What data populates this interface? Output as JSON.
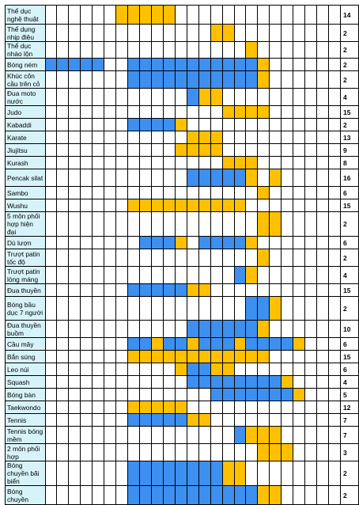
{
  "colors": {
    "name_bg": "#d7f3fa",
    "blue": "#3d8ff0",
    "yellow": "#ffc000"
  },
  "legend_codes": {
    "B": "blue",
    "Y": "yellow",
    ".": "empty"
  },
  "rows": [
    {
      "name": "Thể dục nghệ thuật",
      "count": "14",
      "cells": "......YYYYY.............."
    },
    {
      "name": "Thể dụng nhịp điệu",
      "count": "2",
      "cells": "..............YY........."
    },
    {
      "name": "Thể dục nhào lộn",
      "count": "2",
      "cells": ".................Y......."
    },
    {
      "name": "Bóng ném",
      "count": "2",
      "cells": "BBBBB..BBBBBBBBBBBY......"
    },
    {
      "name": "Khúc côn cầu trên cỏ",
      "count": "2",
      "cells": ".......BBBBBBBBBBBY......"
    },
    {
      "name": "Đua moto nước",
      "count": "4",
      "cells": "............BYY.........."
    },
    {
      "name": "Judo",
      "count": "15",
      "cells": "...............YYYY......"
    },
    {
      "name": "Kabaddi",
      "count": "2",
      "cells": ".......BBBBY............."
    },
    {
      "name": "Karate",
      "count": "13",
      "cells": "............YYY.........."
    },
    {
      "name": "Jiujitsu",
      "count": "9",
      "cells": "...........YYYY.........."
    },
    {
      "name": "Kurash",
      "count": "8",
      "cells": "...............YYY......."
    },
    {
      "name": "Pencak silat",
      "count": "16",
      "cells": "............BBBBBY.Y....."
    },
    {
      "name": "Sambo",
      "count": "6",
      "cells": "..................Y......"
    },
    {
      "name": "Wushu",
      "count": "15",
      "cells": ".......YYYYYYYYYY........"
    },
    {
      "name": "5 môn phối hợp hiện đại",
      "count": "2",
      "cells": "..................YY....."
    },
    {
      "name": "Dù lượn",
      "count": "6",
      "cells": "........BBBY.BBBBY......."
    },
    {
      "name": "Trượt patin tốc độ",
      "count": "2",
      "cells": "..................Y......"
    },
    {
      "name": "Trượt patin lòng máng",
      "count": "4",
      "cells": "................BY......."
    },
    {
      "name": "Đua thuyền",
      "count": "15",
      "cells": ".......BBBBBYY..........."
    },
    {
      "name": "Bóng bầu dục 7 người",
      "count": "2",
      "cells": ".................BBY....."
    },
    {
      "name": "Đua thuyền buồm",
      "count": "10",
      "cells": "............BBBBBBY......"
    },
    {
      "name": "Cầu mây",
      "count": "6",
      "cells": ".......BBYBBYBBBYBBBBY..."
    },
    {
      "name": "Bắn súng",
      "count": "15",
      "cells": ".......YYYYYYYYYYYY......"
    },
    {
      "name": "Leo núi",
      "count": "6",
      "cells": "...........YBBYY........."
    },
    {
      "name": "Squash",
      "count": "4",
      "cells": "............BBBBBBBBY...."
    },
    {
      "name": "Bóng bàn",
      "count": "5",
      "cells": "..............BBBBBBBY..."
    },
    {
      "name": "Taekwondo",
      "count": "12",
      "cells": ".......YYYYY............."
    },
    {
      "name": "Tennis",
      "count": "7",
      "cells": ".......BBBBBYY..........."
    },
    {
      "name": "Tennis bóng mềm",
      "count": "7",
      "cells": "................BYYY....."
    },
    {
      "name": "2 môn phối hợp",
      "count": "3",
      "cells": "..................YYY...."
    },
    {
      "name": "Bóng chuyền bãi biển",
      "count": "2",
      "cells": ".......BBBBBBBBYY........"
    },
    {
      "name": "Bóng chuyền",
      "count": "2",
      "cells": ".......BBBBBBBBBBBYY....."
    }
  ]
}
